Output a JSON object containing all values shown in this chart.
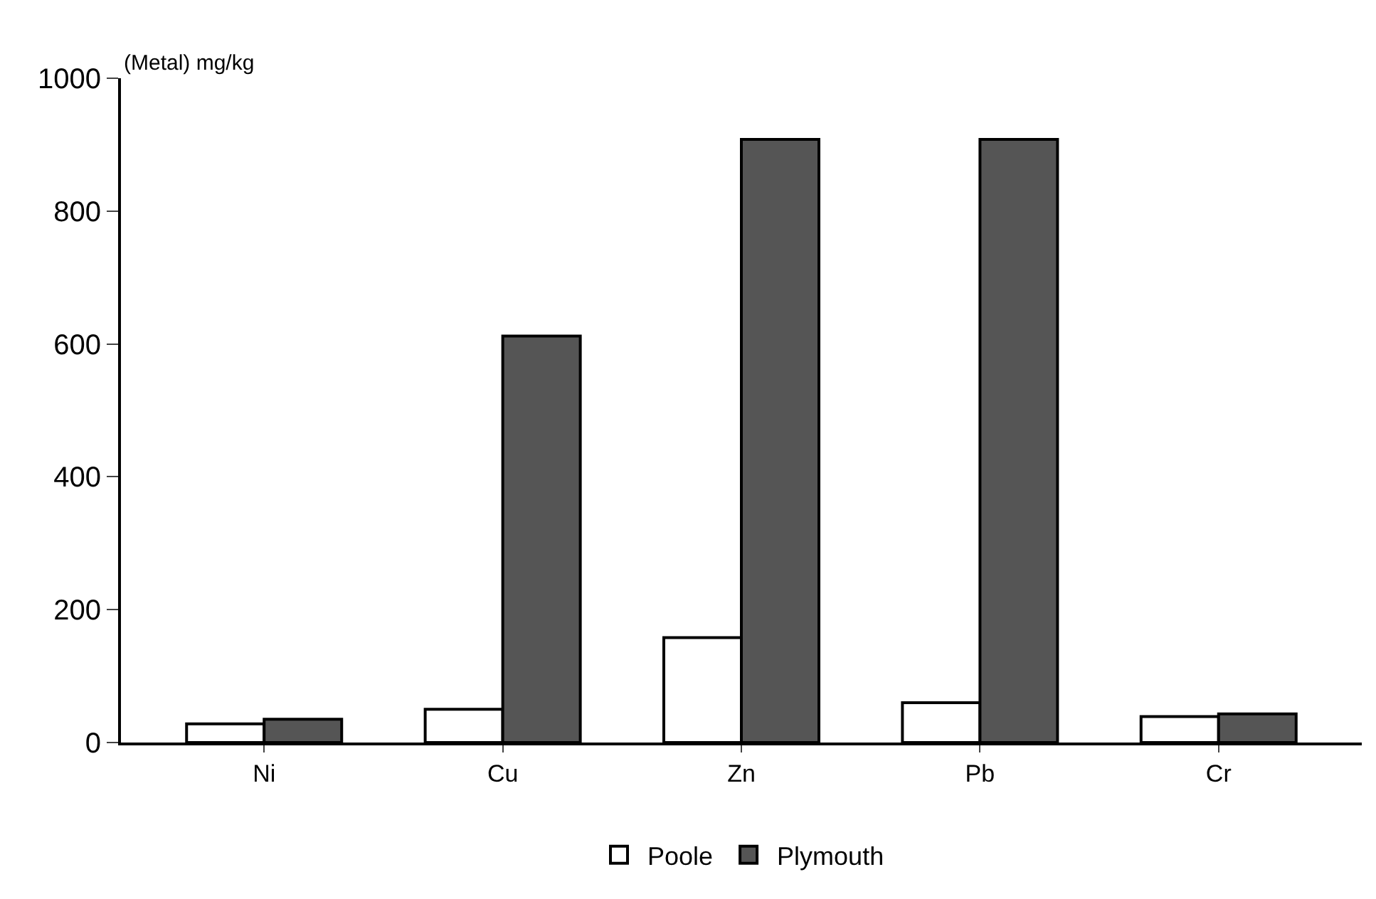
{
  "chart_data": {
    "type": "bar",
    "ylabel": "(Metal) mg/kg",
    "categories": [
      "Ni",
      "Cu",
      "Zn",
      "Pb",
      "Cr"
    ],
    "series": [
      {
        "name": "Poole",
        "color": "#ffffff",
        "values": [
          28,
          50,
          158,
          60,
          39
        ]
      },
      {
        "name": "Plymouth",
        "color": "#555555",
        "values": [
          35,
          612,
          908,
          908,
          43
        ]
      }
    ],
    "ylim": [
      0,
      1000
    ],
    "yticks": [
      0,
      200,
      400,
      600,
      800,
      1000
    ],
    "legend": "bottom"
  }
}
